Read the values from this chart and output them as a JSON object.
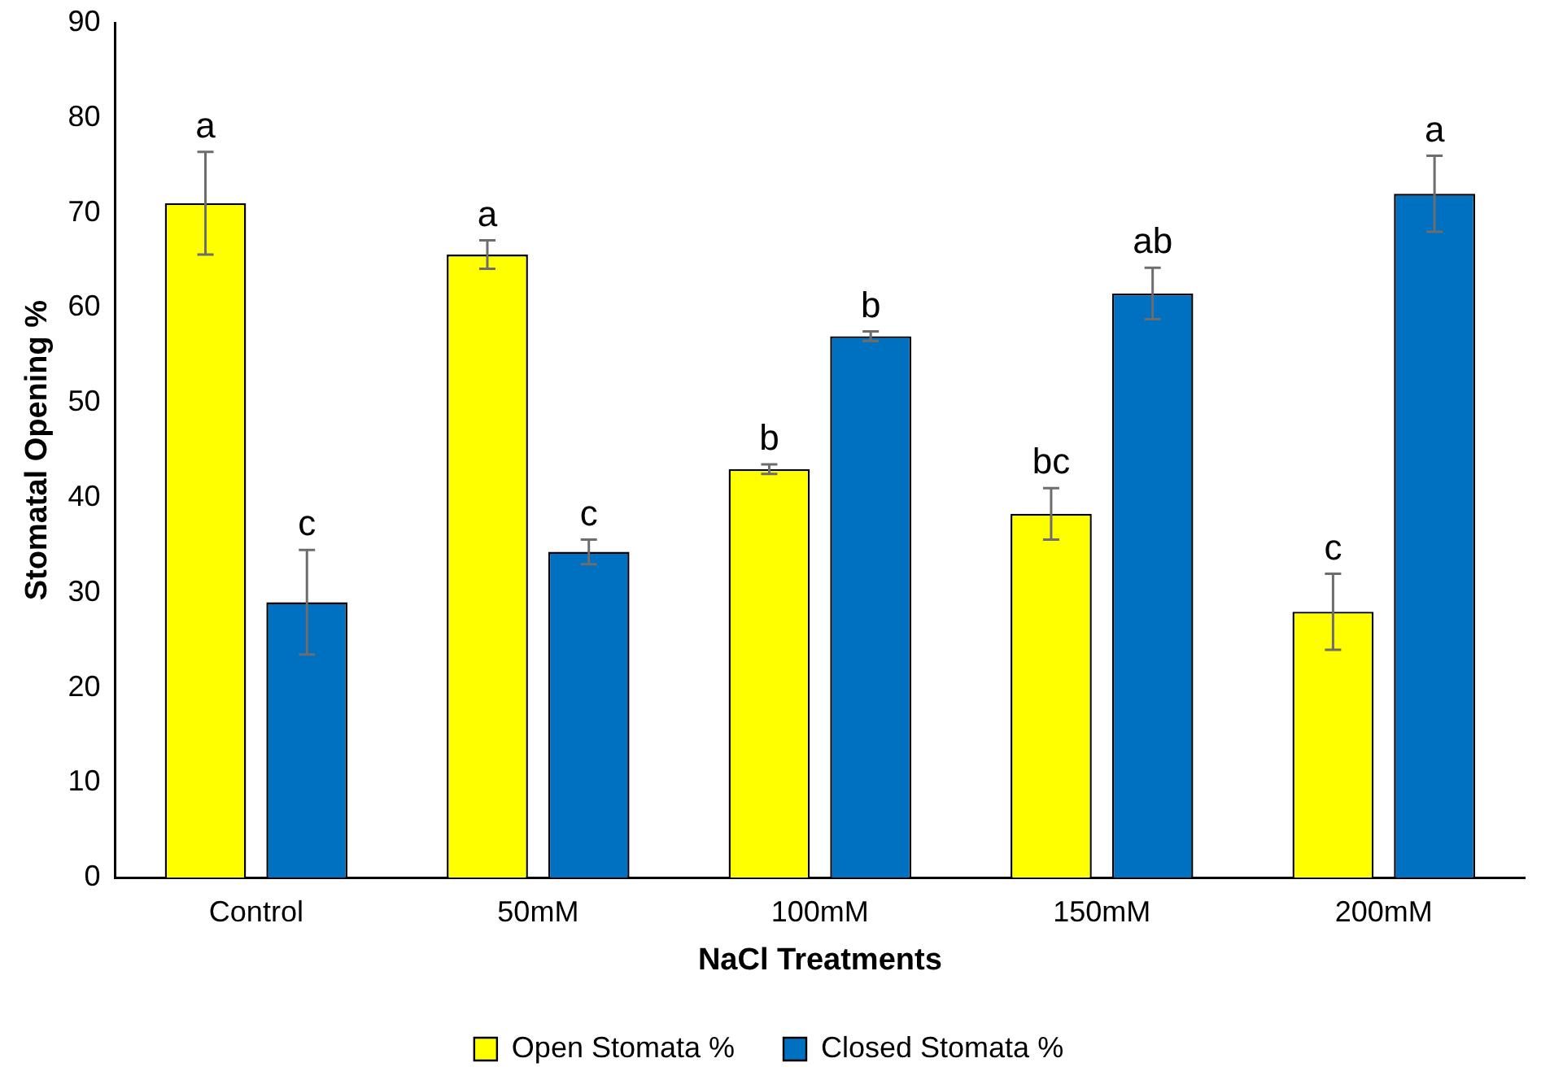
{
  "chart_data": {
    "type": "bar",
    "xlabel": "NaCl Treatments",
    "ylabel": "Stomatal Opening %",
    "categories": [
      "Control",
      "50mM",
      "100mM",
      "150mM",
      "200mM"
    ],
    "series": [
      {
        "name": "Open Stomata %",
        "color": "#ffff00",
        "values": [
          71,
          65.6,
          43,
          38.3,
          28
        ],
        "errors": [
          5.4,
          1.5,
          0.5,
          2.7,
          4
        ],
        "value_labels": [
          "a",
          "a",
          "b",
          "bc",
          "c"
        ]
      },
      {
        "name": "Closed Stomata %",
        "color": "#0070c0",
        "values": [
          29,
          34.3,
          57,
          61.5,
          72
        ],
        "errors": [
          5.5,
          1.3,
          0.5,
          2.7,
          4
        ],
        "value_labels": [
          "c",
          "c",
          "b",
          "ab",
          "a"
        ]
      }
    ],
    "ylim": [
      0,
      90
    ],
    "yticks": [
      0,
      10,
      20,
      30,
      40,
      50,
      60,
      70,
      80,
      90
    ],
    "grid": false,
    "legend": "bottom"
  }
}
